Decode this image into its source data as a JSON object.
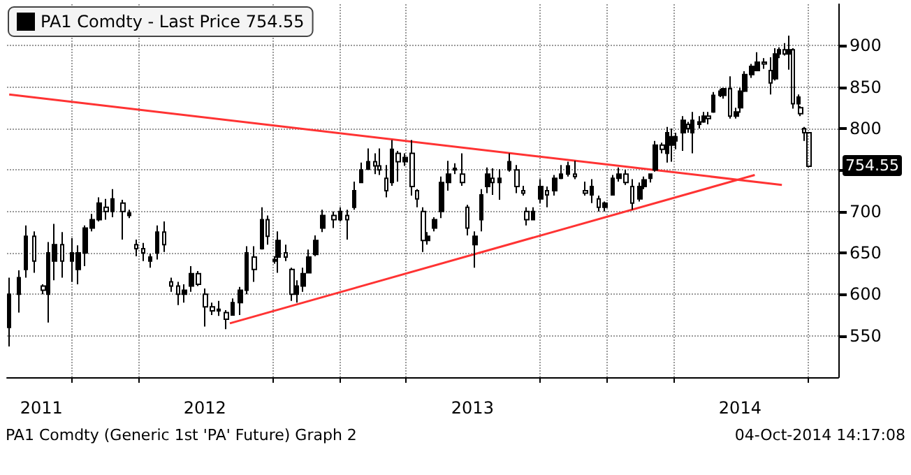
{
  "chart_data": {
    "type": "candlestick",
    "legend": "top left",
    "grid": true,
    "xlim": [
      "2011-10-05",
      "2014-11-12"
    ],
    "xticks": [
      {
        "value": "2011-11-21",
        "label": "2011"
      },
      {
        "value": "2012-01-01",
        "label": null
      },
      {
        "value": "2012-04-01",
        "label": null
      },
      {
        "value": "2012-07-01",
        "label": "2012"
      },
      {
        "value": "2012-10-01",
        "label": null
      },
      {
        "value": "2013-01-01",
        "label": null
      },
      {
        "value": "2013-04-01",
        "label": null
      },
      {
        "value": "2013-07-01",
        "label": "2013"
      },
      {
        "value": "2013-10-01",
        "label": null
      },
      {
        "value": "2014-01-01",
        "label": null
      },
      {
        "value": "2014-04-01",
        "label": null
      },
      {
        "value": "2014-07-01",
        "label": "2014"
      },
      {
        "value": "2014-10-01",
        "label": null
      }
    ],
    "ylim": [
      500,
      950
    ],
    "yticks": [
      550,
      600,
      650,
      700,
      {
        "value": 750,
        "label": null
      },
      800,
      850,
      900
    ],
    "annotations": [
      {
        "text": "754.55",
        "x": "2014-10-03",
        "y": 754.55
      },
      "PA1 Comdty (Generic 1st 'PA' Future) Graph 2",
      "04-Oct-2014 14:17:08"
    ],
    "series": [
      {
        "name": "PA1 Comdty - Last Price 754.55",
        "color": "#000000",
        "x": [
          "2011-10-08",
          "2011-10-21",
          "2011-10-31",
          "2011-11-11",
          "2011-11-24",
          "2011-11-30",
          "2011-12-09",
          "2011-12-19",
          "2012-01-02",
          "2012-01-10",
          "2012-01-20",
          "2012-01-29",
          "2012-02-08",
          "2012-02-17",
          "2012-02-26",
          "2012-03-11",
          "2012-03-20",
          "2012-03-29",
          "2012-04-08",
          "2012-04-17",
          "2012-04-27",
          "2012-05-06",
          "2012-05-16",
          "2012-05-25",
          "2012-06-03",
          "2012-06-13",
          "2012-06-22",
          "2012-07-02",
          "2012-07-11",
          "2012-07-20",
          "2012-07-30",
          "2012-08-08",
          "2012-08-18",
          "2012-08-27",
          "2012-09-06",
          "2012-09-17",
          "2012-09-24",
          "2012-10-04",
          "2012-10-09",
          "2012-10-19",
          "2012-10-28",
          "2012-11-03",
          "2012-11-12",
          "2012-11-20",
          "2012-11-29",
          "2012-12-09",
          "2012-12-24",
          "2013-01-02",
          "2013-01-11",
          "2013-01-21",
          "2013-01-30",
          "2013-02-09",
          "2013-02-18",
          "2013-02-24",
          "2013-03-05",
          "2013-03-13",
          "2013-03-22",
          "2013-03-31",
          "2013-04-10",
          "2013-04-16",
          "2013-04-25",
          "2013-05-01",
          "2013-05-10",
          "2013-05-20",
          "2013-05-29",
          "2013-06-07",
          "2013-06-17",
          "2013-06-24",
          "2013-07-04",
          "2013-07-13",
          "2013-07-22",
          "2013-07-28",
          "2013-08-07",
          "2013-08-20",
          "2013-08-31",
          "2013-09-08",
          "2013-09-13",
          "2013-09-22",
          "2013-10-02",
          "2013-10-11",
          "2013-10-21",
          "2013-10-30",
          "2013-11-08",
          "2013-11-18",
          "2013-12-02",
          "2013-12-11",
          "2013-12-20",
          "2013-12-29",
          "2014-01-08",
          "2014-01-17",
          "2014-01-26",
          "2014-02-04",
          "2014-02-14",
          "2014-02-20",
          "2014-03-01",
          "2014-03-07",
          "2014-03-17",
          "2014-03-24",
          "2014-03-30",
          "2014-04-04",
          "2014-04-14",
          "2014-04-21",
          "2014-04-27",
          "2014-05-06",
          "2014-05-12",
          "2014-05-19",
          "2014-05-25",
          "2014-06-04",
          "2014-06-09",
          "2014-06-17",
          "2014-06-26",
          "2014-07-02",
          "2014-07-07",
          "2014-07-17",
          "2014-07-24",
          "2014-08-03",
          "2014-08-12",
          "2014-08-18",
          "2014-08-23",
          "2014-08-31",
          "2014-09-06",
          "2014-09-11",
          "2014-09-19",
          "2014-09-22",
          "2014-09-26",
          "2014-10-03"
        ],
        "ohlc": [
          [
            560,
            620,
            537,
            600
          ],
          [
            600,
            629,
            578,
            620
          ],
          [
            630,
            683,
            620,
            670
          ],
          [
            670,
            676,
            626,
            640
          ],
          [
            610,
            612,
            600,
            605
          ],
          [
            600,
            663,
            566,
            650
          ],
          [
            640,
            685,
            617,
            660
          ],
          [
            660,
            675,
            620,
            640
          ],
          [
            640,
            668,
            615,
            650
          ],
          [
            630,
            659,
            612,
            650
          ],
          [
            650,
            683,
            634,
            680
          ],
          [
            680,
            697,
            676,
            690
          ],
          [
            690,
            717,
            688,
            710
          ],
          [
            705,
            715,
            690,
            700
          ],
          [
            700,
            727,
            693,
            715
          ],
          [
            710,
            714,
            666,
            700
          ],
          [
            695,
            702,
            692,
            698
          ],
          [
            660,
            666,
            646,
            655
          ],
          [
            655,
            662,
            640,
            650
          ],
          [
            640,
            649,
            632,
            645
          ],
          [
            650,
            683,
            642,
            675
          ],
          [
            675,
            688,
            651,
            660
          ],
          [
            615,
            620,
            603,
            610
          ],
          [
            610,
            615,
            587,
            600
          ],
          [
            600,
            612,
            590,
            605
          ],
          [
            610,
            634,
            603,
            625
          ],
          [
            625,
            628,
            610,
            612
          ],
          [
            600,
            607,
            561,
            585
          ],
          [
            585,
            590,
            575,
            580
          ],
          [
            580,
            592,
            574,
            582
          ],
          [
            578,
            581,
            558,
            570
          ],
          [
            575,
            595,
            575,
            590
          ],
          [
            590,
            609,
            575,
            605
          ],
          [
            605,
            658,
            600,
            650
          ],
          [
            645,
            658,
            615,
            630
          ],
          [
            655,
            705,
            654,
            690
          ],
          [
            690,
            695,
            660,
            670
          ],
          [
            640,
            646,
            637,
            642
          ],
          [
            645,
            676,
            626,
            665
          ],
          [
            650,
            660,
            640,
            645
          ],
          [
            630,
            632,
            592,
            600
          ],
          [
            600,
            617,
            590,
            610
          ],
          [
            610,
            632,
            603,
            625
          ],
          [
            626,
            654,
            626,
            645
          ],
          [
            648,
            671,
            646,
            665
          ],
          [
            680,
            702,
            675,
            695
          ],
          [
            695,
            700,
            680,
            690
          ],
          [
            690,
            705,
            688,
            700
          ],
          [
            695,
            702,
            666,
            690
          ],
          [
            705,
            736,
            702,
            725
          ],
          [
            735,
            759,
            734,
            750
          ],
          [
            751,
            776,
            751,
            760
          ],
          [
            760,
            770,
            745,
            755
          ],
          [
            755,
            776,
            744,
            750
          ],
          [
            740,
            756,
            717,
            725
          ],
          [
            735,
            786,
            731,
            775
          ],
          [
            770,
            773,
            736,
            760
          ],
          [
            760,
            770,
            755,
            765
          ],
          [
            770,
            786,
            719,
            730
          ],
          [
            725,
            727,
            705,
            715
          ],
          [
            700,
            705,
            651,
            665
          ],
          [
            665,
            675,
            660,
            670
          ],
          [
            680,
            693,
            676,
            690
          ],
          [
            700,
            742,
            692,
            735
          ],
          [
            735,
            761,
            725,
            745
          ],
          [
            750,
            758,
            745,
            752
          ],
          [
            745,
            770,
            731,
            735
          ],
          [
            705,
            708,
            671,
            680
          ],
          [
            660,
            676,
            632,
            670
          ],
          [
            690,
            727,
            676,
            720
          ],
          [
            730,
            753,
            722,
            745
          ],
          [
            740,
            752,
            720,
            735
          ],
          [
            735,
            751,
            714,
            740
          ],
          [
            750,
            770,
            748,
            760
          ],
          [
            750,
            756,
            722,
            730
          ],
          [
            725,
            731,
            719,
            722
          ],
          [
            700,
            705,
            683,
            690
          ],
          [
            690,
            705,
            690,
            700
          ],
          [
            715,
            739,
            710,
            730
          ],
          [
            725,
            730,
            705,
            720
          ],
          [
            725,
            744,
            719,
            740
          ],
          [
            740,
            756,
            739,
            745
          ],
          [
            745,
            760,
            742,
            755
          ],
          [
            745,
            761,
            739,
            742
          ],
          [
            725,
            736,
            719,
            722
          ],
          [
            720,
            739,
            710,
            730
          ],
          [
            715,
            719,
            700,
            705
          ],
          [
            705,
            712,
            700,
            710
          ],
          [
            720,
            744,
            719,
            740
          ],
          [
            740,
            753,
            736,
            745
          ],
          [
            745,
            750,
            732,
            735
          ],
          [
            730,
            739,
            702,
            710
          ],
          [
            715,
            735,
            712,
            730
          ],
          [
            730,
            742,
            727,
            738
          ],
          [
            740,
            745,
            735,
            745
          ],
          [
            750,
            785,
            748,
            780
          ],
          [
            780,
            783,
            770,
            775
          ],
          [
            770,
            802,
            759,
            795
          ],
          [
            780,
            800,
            760,
            790
          ],
          [
            785,
            795,
            775,
            790
          ],
          [
            795,
            815,
            773,
            810
          ],
          [
            805,
            808,
            795,
            800
          ],
          [
            795,
            820,
            770,
            810
          ],
          [
            805,
            815,
            800,
            808
          ],
          [
            808,
            820,
            807,
            815
          ],
          [
            815,
            820,
            805,
            812
          ],
          [
            820,
            844,
            819,
            840
          ],
          [
            840,
            848,
            838,
            845
          ],
          [
            840,
            849,
            836,
            848
          ],
          [
            848,
            863,
            812,
            815
          ],
          [
            815,
            825,
            812,
            820
          ],
          [
            825,
            849,
            819,
            845
          ],
          [
            845,
            869,
            844,
            865
          ],
          [
            865,
            878,
            861,
            875
          ],
          [
            870,
            892,
            869,
            880
          ],
          [
            880,
            885,
            872,
            878
          ],
          [
            870,
            886,
            841,
            855
          ],
          [
            860,
            897,
            858,
            890
          ],
          [
            890,
            898,
            885,
            895
          ],
          [
            895,
            903,
            888,
            890
          ],
          [
            890,
            912,
            871,
            895
          ],
          [
            895,
            897,
            824,
            830
          ],
          [
            830,
            841,
            824,
            838
          ],
          [
            825,
            827,
            815,
            818
          ],
          [
            800,
            802,
            785,
            795
          ],
          [
            795,
            795,
            753,
            754.55
          ]
        ]
      },
      {
        "type": "line",
        "color": "#ff3333",
        "x": [
          "2011-10-08",
          "2014-08-27"
        ],
        "values": [
          841,
          732
        ]
      },
      {
        "type": "line",
        "color": "#ff3333",
        "x": [
          "2012-08-04",
          "2014-07-21"
        ],
        "values": [
          565,
          744
        ]
      }
    ]
  }
}
